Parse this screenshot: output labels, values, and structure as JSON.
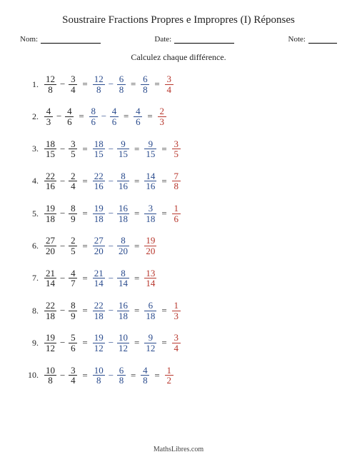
{
  "title": "Soustraire Fractions Propres e Impropres (I) Réponses",
  "fields": {
    "name_label": "Nom:",
    "date_label": "Date:",
    "note_label": "Note:"
  },
  "instruction": "Calculez chaque différence.",
  "footer": "MathsLibres.com",
  "colors": {
    "text": "#222222",
    "step": "#2a4b8d",
    "answer": "#b7352b"
  },
  "underline_widths": {
    "name": 84,
    "date": 84,
    "note": 40
  },
  "problems": [
    {
      "n": "1.",
      "a": {
        "n": "12",
        "d": "8"
      },
      "b": {
        "n": "3",
        "d": "4"
      },
      "step": [
        {
          "n": "12",
          "d": "8"
        },
        {
          "n": "6",
          "d": "8"
        }
      ],
      "mid": {
        "n": "6",
        "d": "8"
      },
      "ans": {
        "n": "3",
        "d": "4"
      }
    },
    {
      "n": "2.",
      "a": {
        "n": "4",
        "d": "3"
      },
      "b": {
        "n": "4",
        "d": "6"
      },
      "step": [
        {
          "n": "8",
          "d": "6"
        },
        {
          "n": "4",
          "d": "6"
        }
      ],
      "mid": {
        "n": "4",
        "d": "6"
      },
      "ans": {
        "n": "2",
        "d": "3"
      }
    },
    {
      "n": "3.",
      "a": {
        "n": "18",
        "d": "15"
      },
      "b": {
        "n": "3",
        "d": "5"
      },
      "step": [
        {
          "n": "18",
          "d": "15"
        },
        {
          "n": "9",
          "d": "15"
        }
      ],
      "mid": {
        "n": "9",
        "d": "15"
      },
      "ans": {
        "n": "3",
        "d": "5"
      }
    },
    {
      "n": "4.",
      "a": {
        "n": "22",
        "d": "16"
      },
      "b": {
        "n": "2",
        "d": "4"
      },
      "step": [
        {
          "n": "22",
          "d": "16"
        },
        {
          "n": "8",
          "d": "16"
        }
      ],
      "mid": {
        "n": "14",
        "d": "16"
      },
      "ans": {
        "n": "7",
        "d": "8"
      }
    },
    {
      "n": "5.",
      "a": {
        "n": "19",
        "d": "18"
      },
      "b": {
        "n": "8",
        "d": "9"
      },
      "step": [
        {
          "n": "19",
          "d": "18"
        },
        {
          "n": "16",
          "d": "18"
        }
      ],
      "mid": {
        "n": "3",
        "d": "18"
      },
      "ans": {
        "n": "1",
        "d": "6"
      }
    },
    {
      "n": "6.",
      "a": {
        "n": "27",
        "d": "20"
      },
      "b": {
        "n": "2",
        "d": "5"
      },
      "step": [
        {
          "n": "27",
          "d": "20"
        },
        {
          "n": "8",
          "d": "20"
        }
      ],
      "mid": null,
      "ans": {
        "n": "19",
        "d": "20"
      }
    },
    {
      "n": "7.",
      "a": {
        "n": "21",
        "d": "14"
      },
      "b": {
        "n": "4",
        "d": "7"
      },
      "step": [
        {
          "n": "21",
          "d": "14"
        },
        {
          "n": "8",
          "d": "14"
        }
      ],
      "mid": null,
      "ans": {
        "n": "13",
        "d": "14"
      }
    },
    {
      "n": "8.",
      "a": {
        "n": "22",
        "d": "18"
      },
      "b": {
        "n": "8",
        "d": "9"
      },
      "step": [
        {
          "n": "22",
          "d": "18"
        },
        {
          "n": "16",
          "d": "18"
        }
      ],
      "mid": {
        "n": "6",
        "d": "18"
      },
      "ans": {
        "n": "1",
        "d": "3"
      }
    },
    {
      "n": "9.",
      "a": {
        "n": "19",
        "d": "12"
      },
      "b": {
        "n": "5",
        "d": "6"
      },
      "step": [
        {
          "n": "19",
          "d": "12"
        },
        {
          "n": "10",
          "d": "12"
        }
      ],
      "mid": {
        "n": "9",
        "d": "12"
      },
      "ans": {
        "n": "3",
        "d": "4"
      }
    },
    {
      "n": "10.",
      "a": {
        "n": "10",
        "d": "8"
      },
      "b": {
        "n": "3",
        "d": "4"
      },
      "step": [
        {
          "n": "10",
          "d": "8"
        },
        {
          "n": "6",
          "d": "8"
        }
      ],
      "mid": {
        "n": "4",
        "d": "8"
      },
      "ans": {
        "n": "1",
        "d": "2"
      }
    }
  ]
}
